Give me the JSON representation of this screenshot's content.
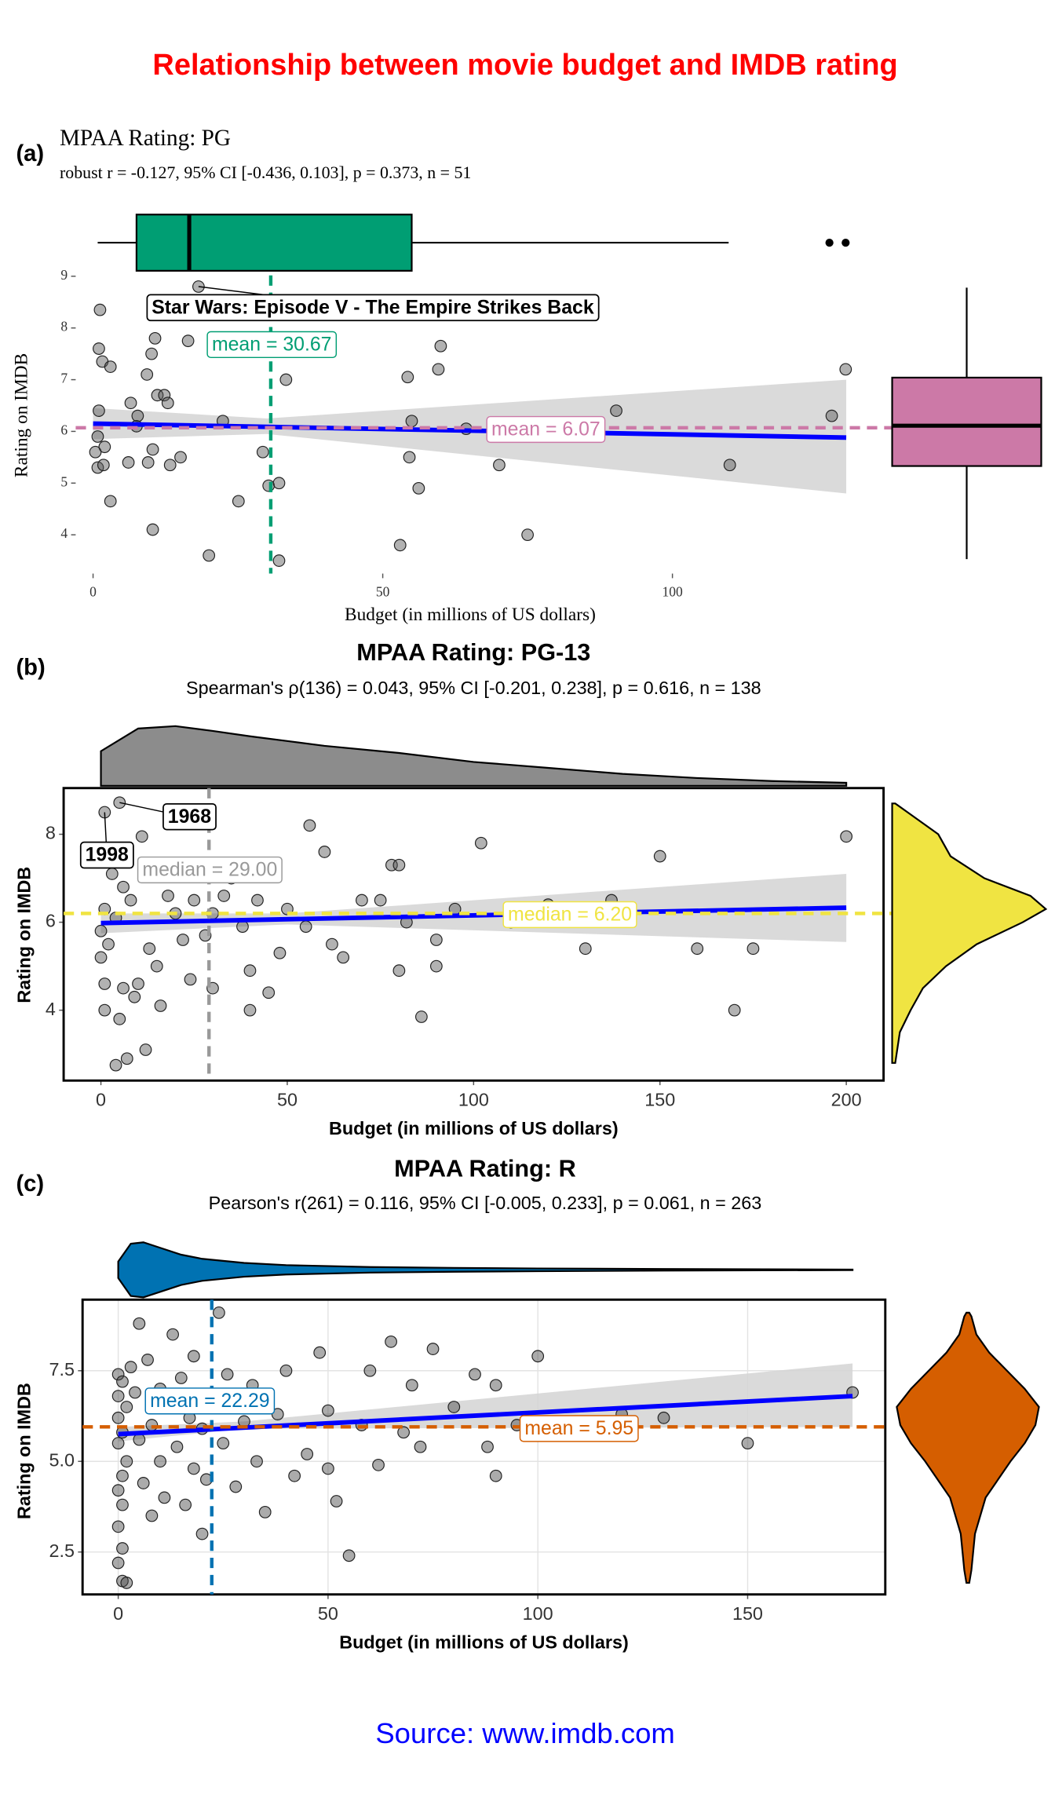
{
  "title": "Relationship between movie budget and IMDB rating",
  "caption": "Source: www.imdb.com",
  "chart_data": [
    {
      "type": "scatter",
      "tag": "(a)",
      "title": "MPAA Rating: PG",
      "subtitle": "robust r = -0.127, 95% CI [-0.436, 0.103], p = 0.373, n = 51",
      "xlabel": "Budget (in millions of US dollars)",
      "ylabel": "Rating on IMDB",
      "xlim": [
        -3,
        131
      ],
      "ylim": [
        3.25,
        9.35
      ],
      "xticks": [
        0,
        50,
        100
      ],
      "yticks": [
        4,
        5,
        6,
        7,
        8,
        9
      ],
      "grid": false,
      "border": false,
      "point_color": "#555555",
      "x": [
        1.2,
        1,
        1.6,
        3,
        10.7,
        10.1,
        16.4,
        18.2,
        9.3,
        11.1,
        12.3,
        12.9,
        6.5,
        7.7,
        7.5,
        1,
        0.8,
        2,
        0.4,
        0.8,
        1.8,
        3,
        6.1,
        10.3,
        9.5,
        13.3,
        15.1,
        10.3,
        20,
        25.1,
        29.3,
        30.3,
        32.1,
        32.1,
        33.3,
        54.3,
        60,
        59.6,
        55,
        54.6,
        56.2,
        53,
        64.4,
        70.1,
        75,
        90.3,
        109.9,
        127.5,
        129.9,
        22.4
      ],
      "y": [
        8.35,
        7.6,
        7.35,
        7.25,
        7.8,
        7.5,
        7.75,
        8.8,
        7.1,
        6.7,
        6.7,
        6.55,
        6.55,
        6.3,
        6.1,
        6.4,
        5.9,
        5.7,
        5.6,
        5.3,
        5.35,
        4.65,
        5.4,
        5.65,
        5.4,
        5.35,
        5.5,
        4.1,
        3.6,
        4.65,
        5.6,
        4.95,
        5,
        3.5,
        7,
        7.05,
        7.65,
        7.2,
        6.2,
        5.5,
        4.9,
        3.8,
        6.05,
        5.35,
        4,
        6.4,
        5.35,
        6.3,
        7.2,
        6.2
      ],
      "fit": {
        "x": [
          0,
          130
        ],
        "y": [
          6.15,
          5.88
        ],
        "color": "#0000FF"
      },
      "ci": {
        "x": [
          0,
          30,
          130
        ],
        "lower": [
          5.85,
          5.95,
          4.8
        ],
        "upper": [
          6.45,
          6.25,
          7.0
        ],
        "color": "#D3D3D3"
      },
      "x_center": {
        "value": 30.67,
        "label": "mean = 30.67",
        "color": "#009E73"
      },
      "y_center": {
        "value": 6.07,
        "label": "mean = 6.07",
        "color": "#CC79A7"
      },
      "top_marginal": {
        "type": "box",
        "color": "#009E73",
        "whisker_low": 0.8,
        "q1": 7.5,
        "median": 16.6,
        "q3": 55,
        "whisker_high": 109.7,
        "outliers": [
          127.1,
          129.9
        ]
      },
      "right_marginal": {
        "type": "box",
        "color": "#CC79A7",
        "whisker_low": 3.53,
        "q1": 5.33,
        "median": 6.11,
        "q3": 7.04,
        "whisker_high": 8.78,
        "outliers": []
      },
      "annotations": [
        {
          "text": "Star Wars: Episode V - The Empire Strikes Back",
          "x": 18.2,
          "y": 8.8
        }
      ]
    },
    {
      "type": "scatter",
      "tag": "(b)",
      "title": "MPAA Rating: PG-13",
      "subtitle": "Spearman's ρ(136) = 0.043, 95% CI [-0.201, 0.238], p = 0.616, n = 138",
      "xlabel": "Budget (in millions of US dollars)",
      "ylabel": "Rating on IMDB",
      "xlim": [
        -10,
        210
      ],
      "ylim": [
        2.4,
        9.05
      ],
      "xticks": [
        0,
        50,
        100,
        150,
        200
      ],
      "yticks": [
        4,
        6,
        8
      ],
      "grid": false,
      "border": true,
      "point_color": "#555555",
      "x": [
        1,
        5,
        11,
        2,
        3,
        6,
        8,
        1,
        4,
        0,
        2,
        0,
        1,
        6,
        9,
        1,
        5,
        7,
        4,
        12,
        10,
        13,
        15,
        16,
        18,
        20,
        22,
        25,
        28,
        30,
        33,
        35,
        38,
        40,
        42,
        45,
        48,
        50,
        55,
        56,
        60,
        62,
        65,
        70,
        75,
        78,
        80,
        82,
        86,
        90,
        95,
        102,
        110,
        120,
        130,
        137,
        150,
        160,
        170,
        175,
        200,
        24,
        30,
        40,
        80,
        90
      ],
      "y": [
        8.5,
        8.72,
        7.95,
        7.6,
        7.1,
        6.8,
        6.5,
        6.3,
        6.1,
        5.8,
        5.5,
        5.2,
        4.6,
        4.5,
        4.3,
        4,
        3.8,
        2.9,
        2.75,
        3.1,
        4.6,
        5.4,
        5,
        4.1,
        6.6,
        6.2,
        5.6,
        6.5,
        5.7,
        6.2,
        6.6,
        7,
        5.9,
        4.9,
        6.5,
        4.4,
        5.3,
        6.3,
        5.9,
        8.2,
        7.6,
        5.5,
        5.2,
        6.5,
        6.5,
        7.3,
        4.9,
        6,
        3.85,
        5.6,
        6.3,
        7.8,
        6,
        6.4,
        5.4,
        6.5,
        7.5,
        5.4,
        4,
        5.4,
        7.95,
        4.7,
        4.5,
        4,
        7.3,
        5
      ],
      "fit": {
        "x": [
          0,
          200
        ],
        "y": [
          5.98,
          6.33
        ],
        "color": "#0000FF"
      },
      "ci": {
        "x": [
          0,
          50,
          200
        ],
        "lower": [
          5.75,
          5.95,
          5.55
        ],
        "upper": [
          6.2,
          6.2,
          7.1
        ],
        "color": "#D3D3D3"
      },
      "x_center": {
        "value": 29,
        "label": "median = 29.00",
        "color": "#999999"
      },
      "y_center": {
        "value": 6.2,
        "label": "median = 6.20",
        "color": "#F0E442"
      },
      "top_marginal": {
        "type": "density",
        "color": "#8C8C8C",
        "at": [
          0,
          10,
          20,
          30,
          40,
          50,
          60,
          80,
          100,
          120,
          140,
          160,
          180,
          200
        ],
        "density": [
          0.58,
          0.96,
          1,
          0.92,
          0.83,
          0.75,
          0.67,
          0.55,
          0.4,
          0.3,
          0.2,
          0.13,
          0.08,
          0.05
        ]
      },
      "right_marginal": {
        "type": "density",
        "color": "#F0E442",
        "at": [
          2.8,
          3.5,
          4,
          4.5,
          5,
          5.5,
          6,
          6.3,
          6.6,
          7,
          7.5,
          8,
          8.5,
          8.7
        ],
        "density": [
          0.02,
          0.05,
          0.12,
          0.2,
          0.35,
          0.55,
          0.85,
          1,
          0.9,
          0.6,
          0.38,
          0.3,
          0.1,
          0.02
        ]
      },
      "annotations": [
        {
          "text": "1968",
          "x": 5,
          "y": 8.72
        },
        {
          "text": "1998",
          "x": 1,
          "y": 8.5
        }
      ]
    },
    {
      "type": "scatter",
      "tag": "(c)",
      "title": "MPAA Rating: R",
      "subtitle": "Pearson's r(261) = 0.116, 95% CI [-0.005, 0.233], p = 0.061, n = 263",
      "xlabel": "Budget (in millions of US dollars)",
      "ylabel": "Rating on IMDB",
      "xlim": [
        -8.5,
        182.8
      ],
      "ylim": [
        1.33,
        9.46
      ],
      "xticks": [
        0,
        50,
        100,
        150
      ],
      "yticks": [
        2.5,
        {
          "value": 5,
          "label": "5.0"
        },
        7.5
      ],
      "grid": true,
      "border": true,
      "point_color": "#444444",
      "x": [
        0,
        1,
        0,
        2,
        0,
        1,
        0,
        2,
        1,
        0,
        1,
        0,
        1,
        0,
        1,
        2,
        3,
        4,
        5,
        5,
        6,
        7,
        8,
        8,
        10,
        10,
        11,
        12,
        13,
        14,
        15,
        16,
        17,
        18,
        18,
        20,
        20,
        21,
        22,
        24,
        25,
        26,
        28,
        30,
        32,
        33,
        35,
        38,
        40,
        42,
        45,
        48,
        50,
        50,
        52,
        55,
        58,
        60,
        62,
        65,
        68,
        70,
        72,
        75,
        80,
        85,
        88,
        90,
        90,
        95,
        100,
        105,
        120,
        130,
        150,
        175
      ],
      "y": [
        7.4,
        7.2,
        6.8,
        6.5,
        6.2,
        5.8,
        5.5,
        5,
        4.6,
        4.2,
        3.8,
        3.2,
        2.6,
        2.2,
        1.7,
        1.65,
        7.6,
        6.9,
        8.8,
        5.6,
        4.4,
        7.8,
        6,
        3.5,
        7,
        5,
        4,
        6.6,
        8.5,
        5.4,
        7.3,
        3.8,
        6.2,
        4.8,
        7.9,
        5.9,
        3,
        4.5,
        6.8,
        9.1,
        5.5,
        7.4,
        4.3,
        6.1,
        7.1,
        5,
        3.6,
        6.3,
        7.5,
        4.6,
        5.2,
        8,
        6.4,
        4.8,
        3.9,
        2.4,
        6,
        7.5,
        4.9,
        8.3,
        5.8,
        7.1,
        5.4,
        8.1,
        6.5,
        7.4,
        5.4,
        7.1,
        4.6,
        6,
        7.9,
        5.8,
        6.3,
        6.2,
        5.5,
        6.9
      ],
      "fit": {
        "x": [
          0,
          175
        ],
        "y": [
          5.75,
          6.8
        ],
        "color": "#0000FF"
      },
      "ci": {
        "x": [
          0,
          30,
          175
        ],
        "lower": [
          5.55,
          5.9,
          5.95
        ],
        "upper": [
          5.95,
          6.1,
          7.7
        ],
        "color": "#D3D3D3"
      },
      "x_center": {
        "value": 22.29,
        "label": "mean = 22.29",
        "color": "#0072B2"
      },
      "y_center": {
        "value": 5.95,
        "label": "mean = 5.95",
        "color": "#D55E00"
      },
      "top_marginal": {
        "type": "violin",
        "color": "#0072B2",
        "at": [
          0,
          3,
          6,
          10,
          15,
          20,
          30,
          40,
          60,
          80,
          100,
          130,
          175
        ],
        "density": [
          0.3,
          0.95,
          1,
          0.8,
          0.55,
          0.4,
          0.25,
          0.17,
          0.1,
          0.07,
          0.05,
          0.03,
          0.01
        ]
      },
      "right_marginal": {
        "type": "violin",
        "color": "#D55E00",
        "at": [
          1.65,
          2,
          3,
          4,
          5,
          5.5,
          6,
          6.5,
          7,
          7.5,
          8,
          8.5,
          9,
          9.1
        ],
        "density": [
          0.02,
          0.05,
          0.1,
          0.25,
          0.6,
          0.8,
          0.95,
          1,
          0.8,
          0.55,
          0.3,
          0.12,
          0.05,
          0.02
        ]
      },
      "annotations": []
    }
  ]
}
